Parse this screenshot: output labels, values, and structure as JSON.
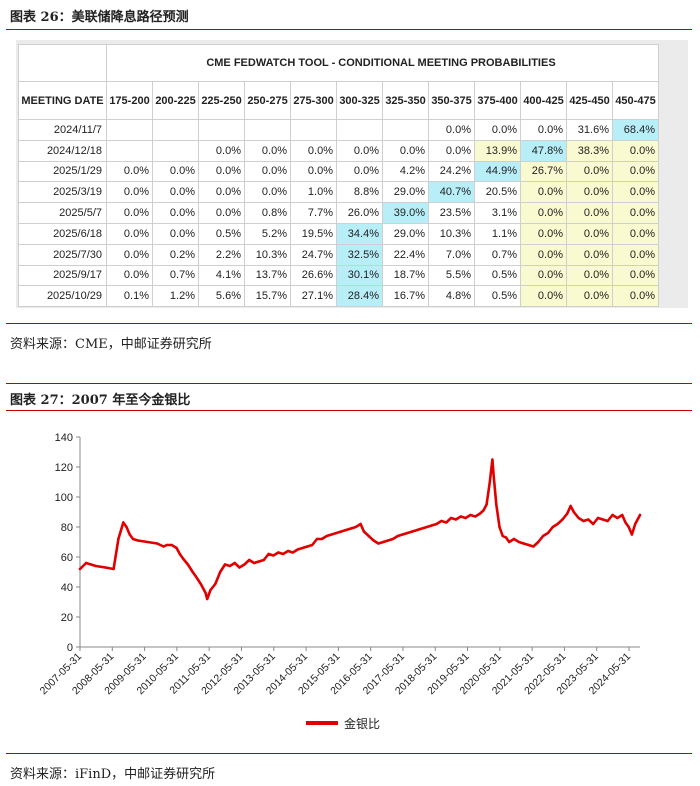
{
  "figure26": {
    "title": "图表 26：美联储降息路径预测",
    "source": "资料来源：CME，中邮证券研究所"
  },
  "fedwatch": {
    "banner": "CME FEDWATCH TOOL - CONDITIONAL MEETING PROBABILITIES",
    "columns": [
      "MEETING DATE",
      "175-200",
      "200-225",
      "225-250",
      "250-275",
      "275-300",
      "300-325",
      "325-350",
      "350-375",
      "375-400",
      "400-425",
      "425-450",
      "450-475"
    ],
    "rows": [
      {
        "date": "2024/11/7",
        "cells": [
          "",
          "",
          "",
          "",
          "",
          "",
          "",
          "0.0%",
          "0.0%",
          "0.0%",
          "31.6%",
          "68.4%"
        ]
      },
      {
        "date": "2024/12/18",
        "cells": [
          "",
          "",
          "0.0%",
          "0.0%",
          "0.0%",
          "0.0%",
          "0.0%",
          "0.0%",
          "13.9%",
          "47.8%",
          "38.3%",
          "0.0%"
        ]
      },
      {
        "date": "2025/1/29",
        "cells": [
          "0.0%",
          "0.0%",
          "0.0%",
          "0.0%",
          "0.0%",
          "0.0%",
          "4.2%",
          "24.2%",
          "44.9%",
          "26.7%",
          "0.0%",
          "0.0%"
        ]
      },
      {
        "date": "2025/3/19",
        "cells": [
          "0.0%",
          "0.0%",
          "0.0%",
          "0.0%",
          "1.0%",
          "8.8%",
          "29.0%",
          "40.7%",
          "20.5%",
          "0.0%",
          "0.0%",
          "0.0%"
        ]
      },
      {
        "date": "2025/5/7",
        "cells": [
          "0.0%",
          "0.0%",
          "0.0%",
          "0.8%",
          "7.7%",
          "26.0%",
          "39.0%",
          "23.5%",
          "3.1%",
          "0.0%",
          "0.0%",
          "0.0%"
        ]
      },
      {
        "date": "2025/6/18",
        "cells": [
          "0.0%",
          "0.0%",
          "0.5%",
          "5.2%",
          "19.5%",
          "34.4%",
          "29.0%",
          "10.3%",
          "1.1%",
          "0.0%",
          "0.0%",
          "0.0%"
        ]
      },
      {
        "date": "2025/7/30",
        "cells": [
          "0.0%",
          "0.2%",
          "2.2%",
          "10.3%",
          "24.7%",
          "32.5%",
          "22.4%",
          "7.0%",
          "0.7%",
          "0.0%",
          "0.0%",
          "0.0%"
        ]
      },
      {
        "date": "2025/9/17",
        "cells": [
          "0.0%",
          "0.7%",
          "4.1%",
          "13.7%",
          "26.6%",
          "30.1%",
          "18.7%",
          "5.5%",
          "0.5%",
          "0.0%",
          "0.0%",
          "0.0%"
        ]
      },
      {
        "date": "2025/10/29",
        "cells": [
          "0.1%",
          "1.2%",
          "5.6%",
          "15.7%",
          "27.1%",
          "28.4%",
          "16.7%",
          "4.8%",
          "0.5%",
          "0.0%",
          "0.0%",
          "0.0%"
        ]
      }
    ],
    "colors": {
      "blue": "#b7eef8",
      "yellow": "#fafad0"
    }
  },
  "figure27": {
    "title": "图表 27：2007 年至今金银比",
    "source": "资料来源：iFinD，中邮证券研究所"
  },
  "chart_data": {
    "type": "line",
    "title": "2007 年至今金银比",
    "xlabel": "",
    "ylabel": "",
    "ylim": [
      0,
      140
    ],
    "yticks": [
      0,
      20,
      40,
      60,
      80,
      100,
      120,
      140
    ],
    "xlim": [
      2007.41,
      2024.75
    ],
    "xticks": [
      "2007-05-31",
      "2008-05-31",
      "2009-05-31",
      "2010-05-31",
      "2011-05-31",
      "2012-05-31",
      "2013-05-31",
      "2014-05-31",
      "2015-05-31",
      "2016-05-31",
      "2017-05-31",
      "2018-05-31",
      "2019-05-31",
      "2020-05-31",
      "2021-05-31",
      "2022-05-31",
      "2023-05-31",
      "2024-05-31"
    ],
    "legend_position": "bottom",
    "series": [
      {
        "name": "金银比",
        "color": "#e00000",
        "x": [
          2007.41,
          2007.6,
          2007.9,
          2008.2,
          2008.45,
          2008.6,
          2008.75,
          2008.85,
          2008.95,
          2009.05,
          2009.2,
          2009.5,
          2009.8,
          2010.0,
          2010.1,
          2010.25,
          2010.4,
          2010.5,
          2010.6,
          2010.75,
          2010.9,
          2011.0,
          2011.15,
          2011.3,
          2011.35,
          2011.45,
          2011.6,
          2011.75,
          2011.9,
          2012.05,
          2012.2,
          2012.35,
          2012.5,
          2012.65,
          2012.8,
          2012.95,
          2013.1,
          2013.25,
          2013.4,
          2013.55,
          2013.7,
          2013.85,
          2014.0,
          2014.15,
          2014.3,
          2014.45,
          2014.6,
          2014.75,
          2014.9,
          2015.05,
          2015.2,
          2015.35,
          2015.5,
          2015.65,
          2015.8,
          2015.95,
          2016.1,
          2016.2,
          2016.35,
          2016.5,
          2016.65,
          2016.8,
          2016.95,
          2017.1,
          2017.25,
          2017.4,
          2017.55,
          2017.7,
          2017.85,
          2018.0,
          2018.15,
          2018.3,
          2018.45,
          2018.6,
          2018.75,
          2018.9,
          2019.05,
          2019.2,
          2019.35,
          2019.5,
          2019.65,
          2019.8,
          2019.9,
          2020.0,
          2020.1,
          2020.18,
          2020.22,
          2020.3,
          2020.4,
          2020.5,
          2020.6,
          2020.7,
          2020.85,
          2021.0,
          2021.15,
          2021.3,
          2021.45,
          2021.6,
          2021.75,
          2021.9,
          2022.05,
          2022.2,
          2022.35,
          2022.5,
          2022.6,
          2022.7,
          2022.85,
          2023.0,
          2023.15,
          2023.3,
          2023.45,
          2023.6,
          2023.75,
          2023.9,
          2024.05,
          2024.2,
          2024.3,
          2024.4,
          2024.5,
          2024.6,
          2024.75
        ],
        "values": [
          52,
          56,
          54,
          53,
          52,
          72,
          83,
          80,
          75,
          72,
          71,
          70,
          69,
          67,
          68,
          68,
          66,
          62,
          59,
          55,
          50,
          47,
          42,
          36,
          32,
          38,
          42,
          50,
          55,
          54,
          56,
          53,
          55,
          58,
          56,
          57,
          58,
          62,
          61,
          63,
          62,
          64,
          63,
          65,
          66,
          67,
          68,
          72,
          72,
          74,
          75,
          76,
          77,
          78,
          79,
          80,
          82,
          77,
          74,
          71,
          69,
          70,
          71,
          72,
          74,
          75,
          76,
          77,
          78,
          79,
          80,
          81,
          82,
          84,
          83,
          86,
          85,
          87,
          86,
          88,
          87,
          89,
          91,
          95,
          110,
          125,
          114,
          95,
          80,
          74,
          73,
          70,
          72,
          70,
          69,
          68,
          67,
          70,
          74,
          76,
          80,
          82,
          85,
          89,
          94,
          90,
          86,
          84,
          85,
          82,
          86,
          85,
          84,
          88,
          86,
          88,
          83,
          80,
          75,
          82,
          88
        ]
      }
    ]
  }
}
